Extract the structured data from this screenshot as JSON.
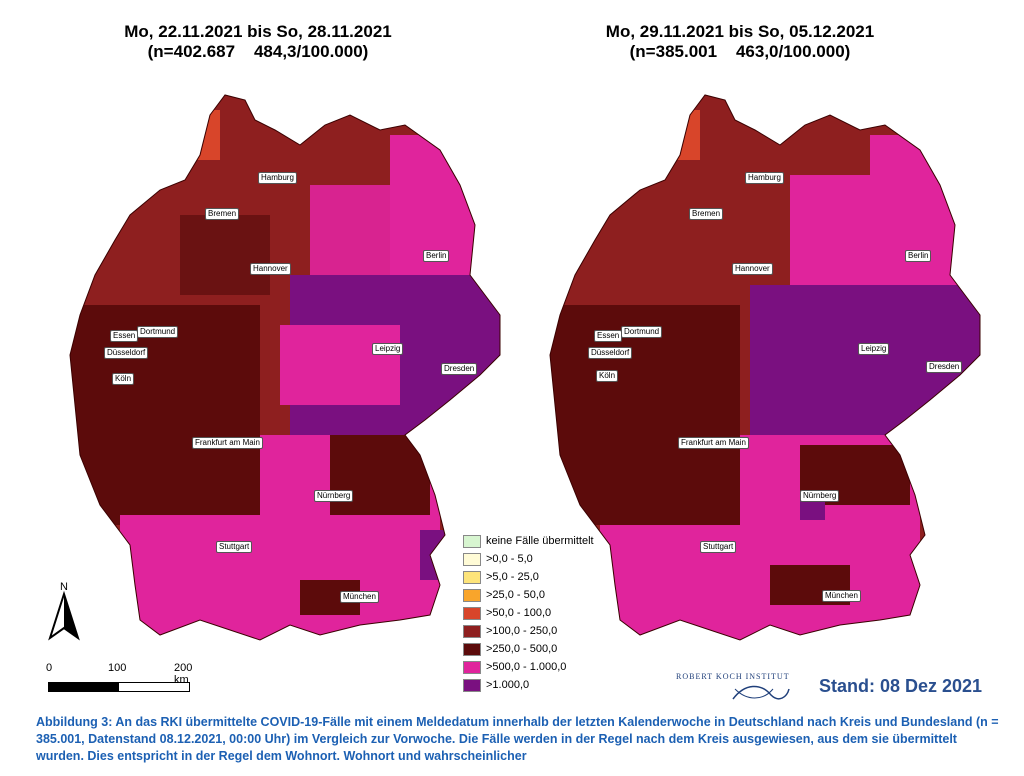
{
  "maps": [
    {
      "title_line1": "Mo, 22.11.2021 bis So, 28.11.2021",
      "title_line2": "(n=402.687    484,3/100.000)"
    },
    {
      "title_line1": "Mo, 29.11.2021 bis So, 05.12.2021",
      "title_line2": "(n=385.001    463,0/100.000)"
    }
  ],
  "cities": [
    "Hamburg",
    "Bremen",
    "Berlin",
    "Hannover",
    "Essen",
    "Dortmund",
    "Düsseldorf",
    "Leipzig",
    "Köln",
    "Dresden",
    "Frankfurt am Main",
    "Nürnberg",
    "Stuttgart",
    "München"
  ],
  "legend": [
    {
      "label": "keine Fälle übermittelt",
      "color": "#d7f5d0"
    },
    {
      "label": ">0,0 - 5,0",
      "color": "#fffbd6"
    },
    {
      "label": ">5,0 - 25,0",
      "color": "#fde47a"
    },
    {
      "label": ">25,0 - 50,0",
      "color": "#f9a52b"
    },
    {
      "label": ">50,0 - 100,0",
      "color": "#d8452a"
    },
    {
      "label": ">100,0 - 250,0",
      "color": "#8e1f1f"
    },
    {
      "label": ">250,0 - 500,0",
      "color": "#5c0b0b"
    },
    {
      "label": ">500,0 - 1.000,0",
      "color": "#e0249c"
    },
    {
      "label": ">1.000,0",
      "color": "#7a1080"
    }
  ],
  "north_label": "N",
  "scale": {
    "labels": [
      "0",
      "100",
      "200 km"
    ]
  },
  "logo_text": "ROBERT KOCH INSTITUT",
  "stand": "Stand: 08 Dez 2021",
  "caption": "Abbildung 3: An das RKI übermittelte COVID-19-Fälle mit einem Meldedatum innerhalb der letzten Kalenderwoche in Deutschland nach Kreis und Bundesland (n = 385.001, Datenstand 08.12.2021, 00:00 Uhr) im Vergleich zur Vorwoche. Die Fälle werden in der Regel nach dem Kreis ausgewiesen, aus dem sie übermittelt wurden. Dies entspricht in der Regel dem Wohnort. Wohnort und wahrscheinlicher",
  "colors": {
    "caption": "#1c60b3",
    "stand": "#2a4f8f"
  }
}
